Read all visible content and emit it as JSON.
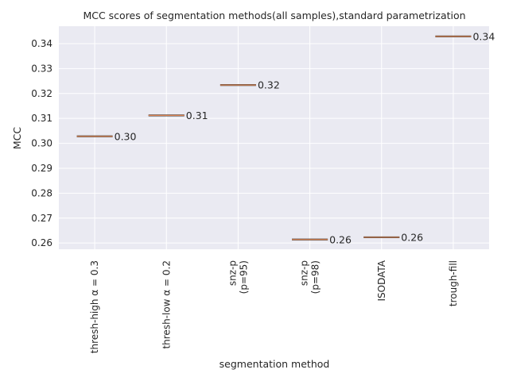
{
  "chart_data": {
    "type": "box",
    "title": "MCC scores of segmentation methods(all samples),standard parametrization",
    "xlabel": "segmentation method",
    "ylabel": "MCC",
    "categories": [
      [
        "thresh-high α = 0.3"
      ],
      [
        "thresh-low α = 0.2"
      ],
      [
        "snz-p",
        "(p=95)"
      ],
      [
        "snz-p",
        "(p=98)"
      ],
      [
        "ISODATA"
      ],
      [
        "trough-fill"
      ]
    ],
    "values": [
      0.3028,
      0.3112,
      0.3234,
      0.2614,
      0.2623,
      0.3429
    ],
    "value_labels": [
      "0.30",
      "0.31",
      "0.32",
      "0.26",
      "0.26",
      "0.34"
    ],
    "ylim": [
      0.2575,
      0.347
    ],
    "yticks": [
      0.26,
      0.27,
      0.28,
      0.29,
      0.3,
      0.31,
      0.32,
      0.33,
      0.34
    ],
    "ytick_labels": [
      "0.26",
      "0.27",
      "0.28",
      "0.29",
      "0.30",
      "0.31",
      "0.32",
      "0.33",
      "0.34"
    ],
    "grid": true,
    "colors": {
      "background": "#EAEAF2",
      "grid": "#FFFFFF",
      "median": "#DD8452",
      "box": "#3A3A3A",
      "text": "#262626"
    }
  }
}
